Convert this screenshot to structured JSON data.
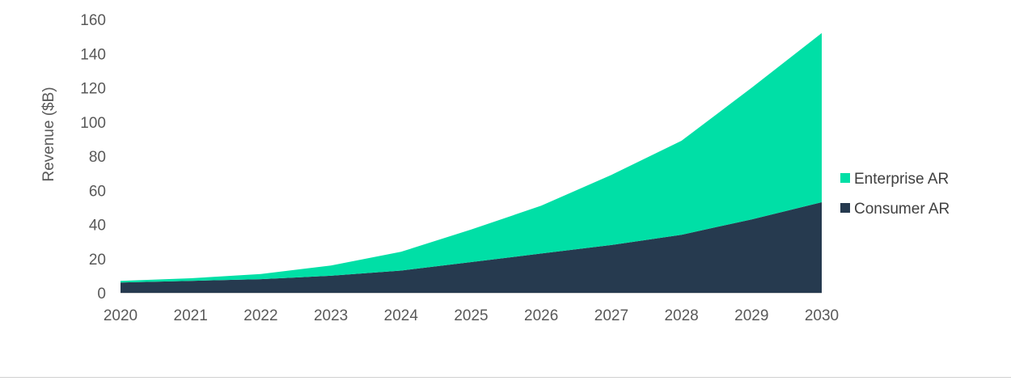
{
  "chart_data": {
    "type": "area",
    "stacked": true,
    "x": [
      "2020",
      "2021",
      "2022",
      "2023",
      "2024",
      "2025",
      "2026",
      "2027",
      "2028",
      "2029",
      "2030"
    ],
    "series": [
      {
        "name": "Consumer AR",
        "values": [
          6,
          7,
          8,
          10,
          13,
          18,
          23,
          28,
          34,
          43,
          53
        ],
        "color": "#263A4F"
      },
      {
        "name": "Enterprise AR",
        "values": [
          1,
          1.5,
          3,
          6,
          11,
          19,
          28,
          41,
          55,
          77,
          99
        ],
        "color": "#00DFA6"
      }
    ],
    "ylabel": "Revenue ($B)",
    "xlabel": "",
    "title": "",
    "ylim": [
      0,
      160
    ],
    "yticks": [
      "0",
      "20",
      "40",
      "60",
      "80",
      "100",
      "120",
      "140",
      "160"
    ],
    "grid": false,
    "legend_position": "right"
  }
}
